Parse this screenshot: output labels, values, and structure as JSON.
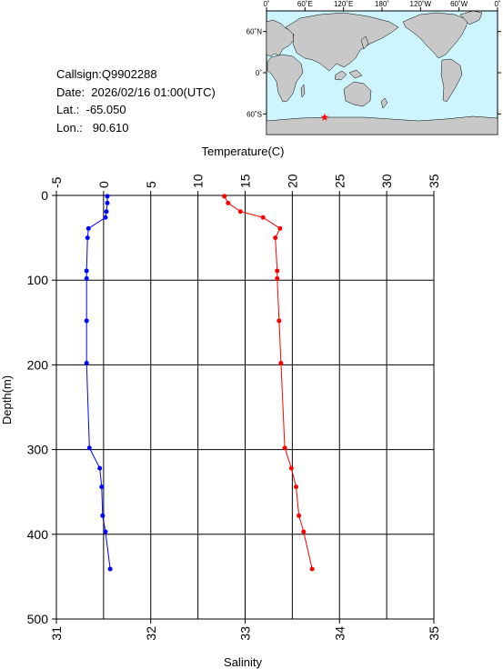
{
  "info": {
    "callsign": "Callsign:Q9902288",
    "date": "Date:  2026/02/16 01:00(UTC)",
    "lat": "Lat.:  -65.050",
    "lon": "Lon.:   90.610"
  },
  "map": {
    "top_labels": [
      "0˚",
      "60˚E",
      "120˚E",
      "180˚",
      "120˚W",
      "60˚W",
      "0˚"
    ],
    "side_labels": [
      "60˚N",
      "0˚",
      "60˚S"
    ],
    "ocean_color": "#ccf5ff",
    "land_color": "#c8c8c8",
    "marker_color": "#ff0000",
    "marker": {
      "lon": 90.61,
      "lat": -65.05
    }
  },
  "chart_data": {
    "type": "line",
    "title": "",
    "ylabel": "Depth(m)",
    "ylim": [
      0,
      500
    ],
    "y_inverted": true,
    "y_ticks": [
      "0",
      "100",
      "200",
      "300",
      "400",
      "500"
    ],
    "grid": true,
    "temperature_axis": {
      "label": "Temperature(C)",
      "range": [
        -5,
        35
      ],
      "ticks": [
        "-5",
        "0",
        "5",
        "10",
        "15",
        "20",
        "25",
        "30",
        "35"
      ],
      "position": "top"
    },
    "salinity_axis": {
      "label": "Salinity",
      "range": [
        31,
        35
      ],
      "ticks": [
        "31",
        "32",
        "33",
        "34",
        "35"
      ],
      "position": "bottom"
    },
    "series": [
      {
        "axis": "salinity",
        "color": "#0000ff",
        "points": [
          [
            31.54,
            1
          ],
          [
            31.54,
            9
          ],
          [
            31.53,
            19
          ],
          [
            31.52,
            26
          ],
          [
            31.34,
            39
          ],
          [
            31.33,
            50
          ],
          [
            31.32,
            89
          ],
          [
            31.32,
            98
          ],
          [
            31.32,
            148
          ],
          [
            31.32,
            198
          ],
          [
            31.35,
            298
          ],
          [
            31.46,
            322
          ],
          [
            31.48,
            344
          ],
          [
            31.49,
            378
          ],
          [
            31.52,
            397
          ],
          [
            31.57,
            441
          ]
        ]
      },
      {
        "axis": "temperature",
        "color": "#ff0000",
        "points": [
          [
            12.8,
            1
          ],
          [
            13.2,
            9
          ],
          [
            14.5,
            19
          ],
          [
            16.9,
            26
          ],
          [
            18.7,
            39
          ],
          [
            18.2,
            50
          ],
          [
            18.4,
            89
          ],
          [
            18.4,
            98
          ],
          [
            18.6,
            148
          ],
          [
            18.8,
            198
          ],
          [
            19.2,
            298
          ],
          [
            19.9,
            322
          ],
          [
            20.4,
            344
          ],
          [
            20.7,
            378
          ],
          [
            21.2,
            397
          ],
          [
            22.1,
            441
          ]
        ]
      }
    ]
  }
}
